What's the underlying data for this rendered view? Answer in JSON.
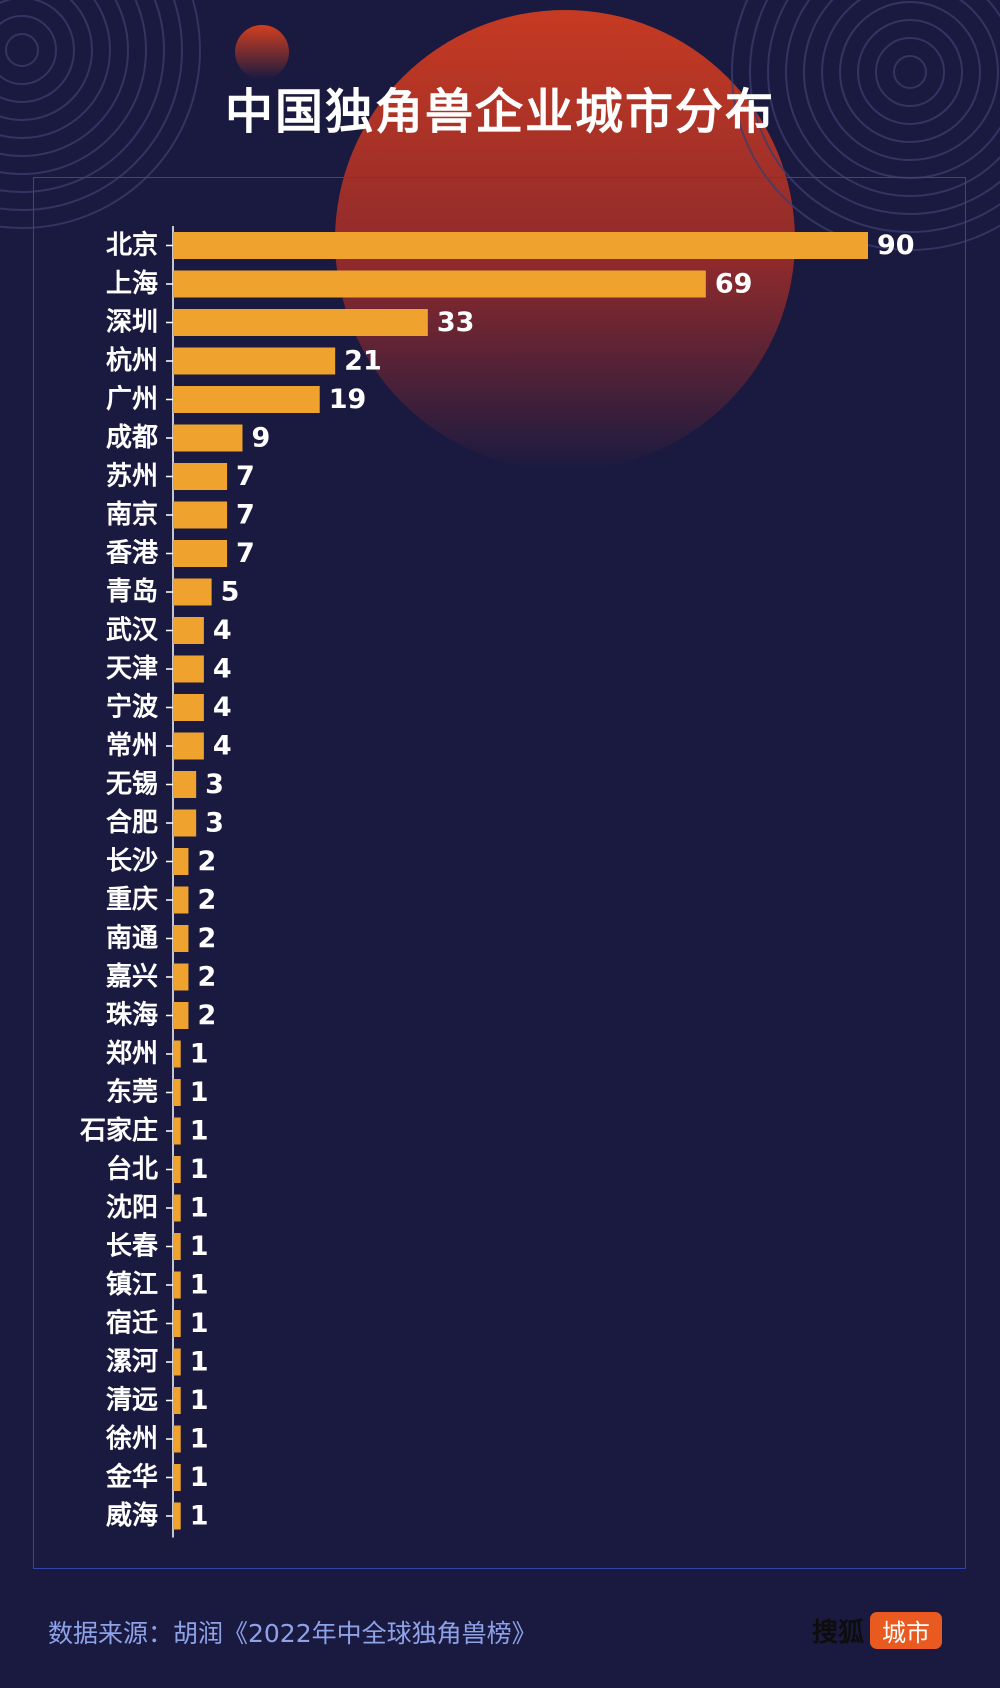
{
  "title": "中国独角兽企业城市分布",
  "source_text": "数据来源：胡润《2022年中全球独角兽榜》",
  "brand": {
    "name": "搜狐",
    "city": "城市"
  },
  "colors": {
    "background": "#1a1a40",
    "bar": "#efa22e",
    "sun": "#c0392b",
    "frame": "#2f46a8",
    "text": "#ffffff"
  },
  "chart_data": {
    "type": "bar",
    "orientation": "horizontal",
    "categories": [
      "北京",
      "上海",
      "深圳",
      "杭州",
      "广州",
      "成都",
      "苏州",
      "南京",
      "香港",
      "青岛",
      "武汉",
      "天津",
      "宁波",
      "常州",
      "无锡",
      "合肥",
      "长沙",
      "重庆",
      "南通",
      "嘉兴",
      "珠海",
      "郑州",
      "东莞",
      "石家庄",
      "台北",
      "沈阳",
      "长春",
      "镇江",
      "宿迁",
      "漯河",
      "清远",
      "徐州",
      "金华",
      "威海"
    ],
    "values": [
      90,
      69,
      33,
      21,
      19,
      9,
      7,
      7,
      7,
      5,
      4,
      4,
      4,
      4,
      3,
      3,
      2,
      2,
      2,
      2,
      2,
      1,
      1,
      1,
      1,
      1,
      1,
      1,
      1,
      1,
      1,
      1,
      1,
      1
    ],
    "xlim": [
      0,
      90
    ],
    "grid": false,
    "legend": "none",
    "data_labels": true
  }
}
